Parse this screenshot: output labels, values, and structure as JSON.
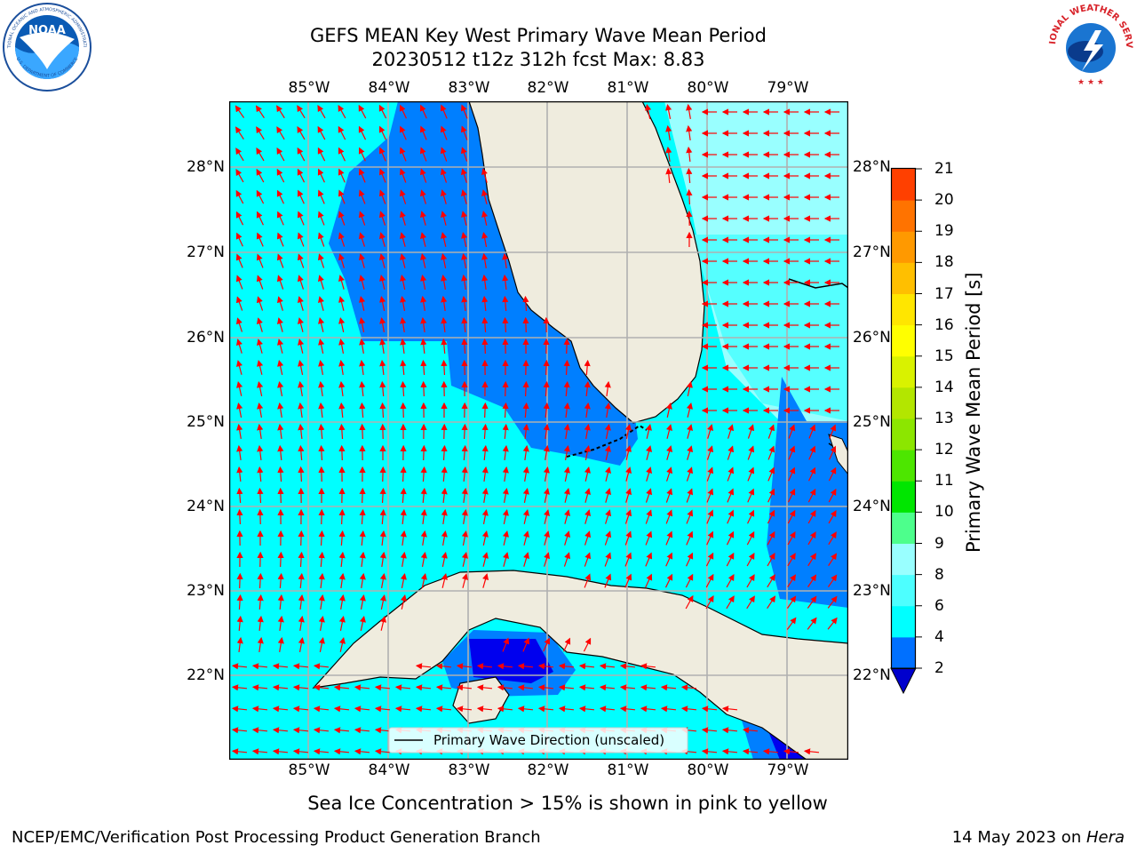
{
  "header": {
    "title_line1": "GEFS MEAN Key West Primary Wave Mean Period",
    "title_line2": "20230512 t12z 312h fcst   Max: 8.83"
  },
  "logos": {
    "noaa_text": "NOAA",
    "noaa_ring": "NATIONAL OCEANIC AND ATMOSPHERIC ADMINISTRATION",
    "noaa_ring_bottom": "U.S. DEPARTMENT OF COMMERCE",
    "nws_ring": "NATIONAL WEATHER SERVICE"
  },
  "map": {
    "lon_labels": [
      "85°W",
      "84°W",
      "83°W",
      "82°W",
      "81°W",
      "80°W",
      "79°W"
    ],
    "lat_labels": [
      "28°N",
      "27°N",
      "26°N",
      "25°N",
      "24°N",
      "23°N",
      "22°N"
    ],
    "legend": "Primary Wave Direction (unscaled)",
    "colors": {
      "land": "#efecde",
      "ocean_low": "#00ffff",
      "ocean_mid": "#007fff",
      "ocean_deep": "#0000ee",
      "ocean_light": "#55ffff",
      "ocean_lighter": "#99ffff",
      "arrow": "#ff0000"
    }
  },
  "colorbar": {
    "label": "Primary Wave Mean Period [s]",
    "ticks": [
      "2",
      "4",
      "6",
      "8",
      "9",
      "10",
      "11",
      "12",
      "13",
      "14",
      "15",
      "16",
      "17",
      "18",
      "19",
      "20",
      "21"
    ],
    "colors": [
      "#0070ff",
      "#00ffff",
      "#4dffff",
      "#99ffff",
      "#4dff8c",
      "#00e600",
      "#4de600",
      "#8ce600",
      "#b3e600",
      "#d9f200",
      "#ffff00",
      "#ffe600",
      "#ffbf00",
      "#ff9900",
      "#ff7300",
      "#ff4000",
      "#ff0000"
    ],
    "extend_color": "#0000cd"
  },
  "note": "Sea Ice Concentration > 15% is shown in pink to yellow",
  "footer": {
    "left": "NCEP/EMC/Verification Post Processing Product Generation Branch",
    "right_date": "14 May 2023 on ",
    "right_host": "Hera"
  }
}
